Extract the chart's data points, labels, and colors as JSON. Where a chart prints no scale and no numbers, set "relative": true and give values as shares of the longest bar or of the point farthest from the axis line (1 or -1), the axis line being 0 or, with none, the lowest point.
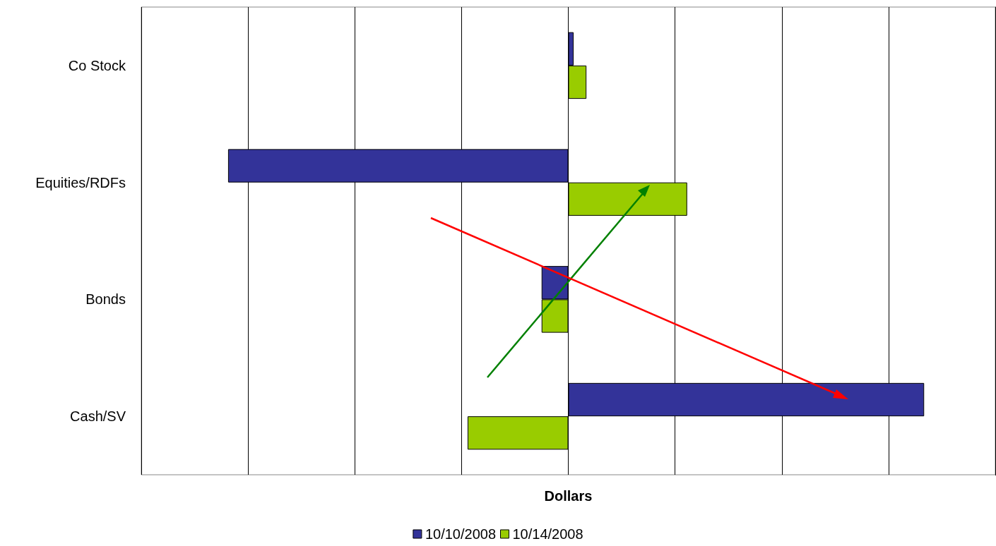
{
  "chart_data": {
    "type": "bar",
    "orientation": "horizontal",
    "relative": true,
    "xlabel": "Dollars",
    "categories": [
      "Co Stock",
      "Equities/RDFs",
      "Bonds",
      "Cash/SV"
    ],
    "series": [
      {
        "name": "10/10/2008",
        "color": "#333399",
        "values": [
          0.015,
          -0.956,
          -0.075,
          1
        ]
      },
      {
        "name": "10/14/2008",
        "color": "#99cc00",
        "values": [
          0.051,
          0.334,
          -0.075,
          -0.283
        ]
      }
    ],
    "grid": "x",
    "legend": "bottom"
  }
}
